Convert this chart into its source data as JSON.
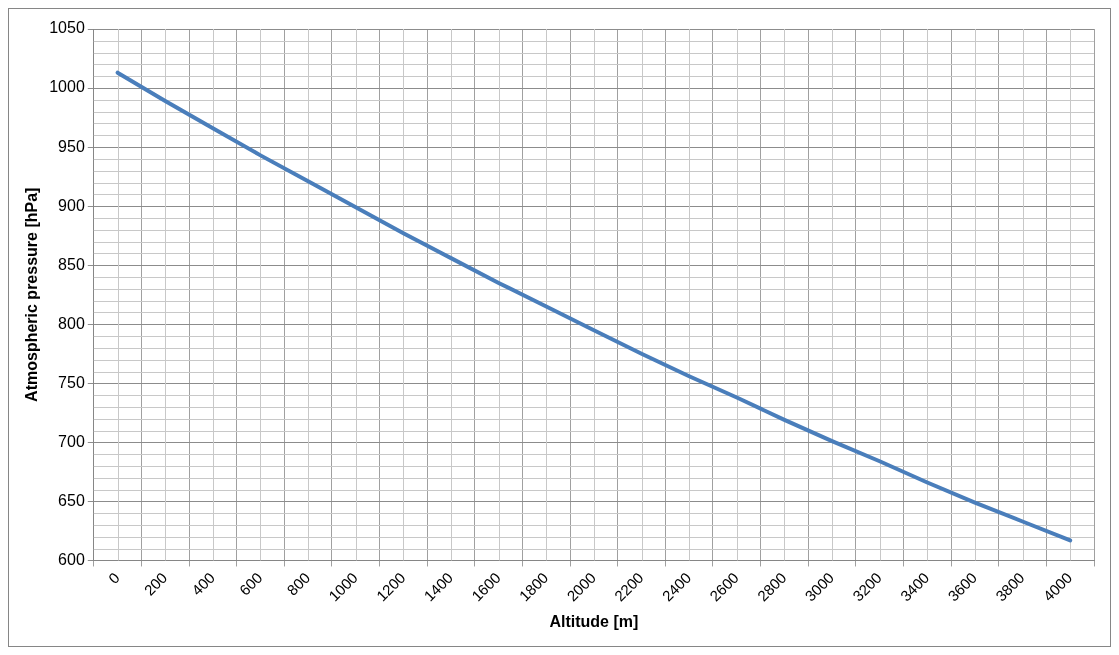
{
  "chart_data": {
    "type": "line",
    "xlabel": "Altitude [m]",
    "ylabel": "Atmospheric pressure [hPa]",
    "categories": [
      "0",
      "200",
      "400",
      "600",
      "800",
      "1000",
      "1200",
      "1400",
      "1600",
      "1800",
      "2000",
      "2200",
      "2400",
      "2600",
      "2800",
      "3000",
      "3200",
      "3400",
      "3600",
      "3800",
      "4000"
    ],
    "series": [
      {
        "color": "#4a7ebb",
        "values": [
          1013,
          989,
          966,
          943,
          921,
          899,
          877,
          856,
          835,
          815,
          795,
          775,
          756,
          738,
          719,
          701,
          684,
          666,
          649,
          633,
          617
        ]
      }
    ],
    "ylim": [
      600,
      1050
    ],
    "yticks": [
      600,
      650,
      700,
      750,
      800,
      850,
      900,
      950,
      1000,
      1050
    ],
    "grid": true,
    "legend": false,
    "marker": "none",
    "line_style": "solid"
  }
}
